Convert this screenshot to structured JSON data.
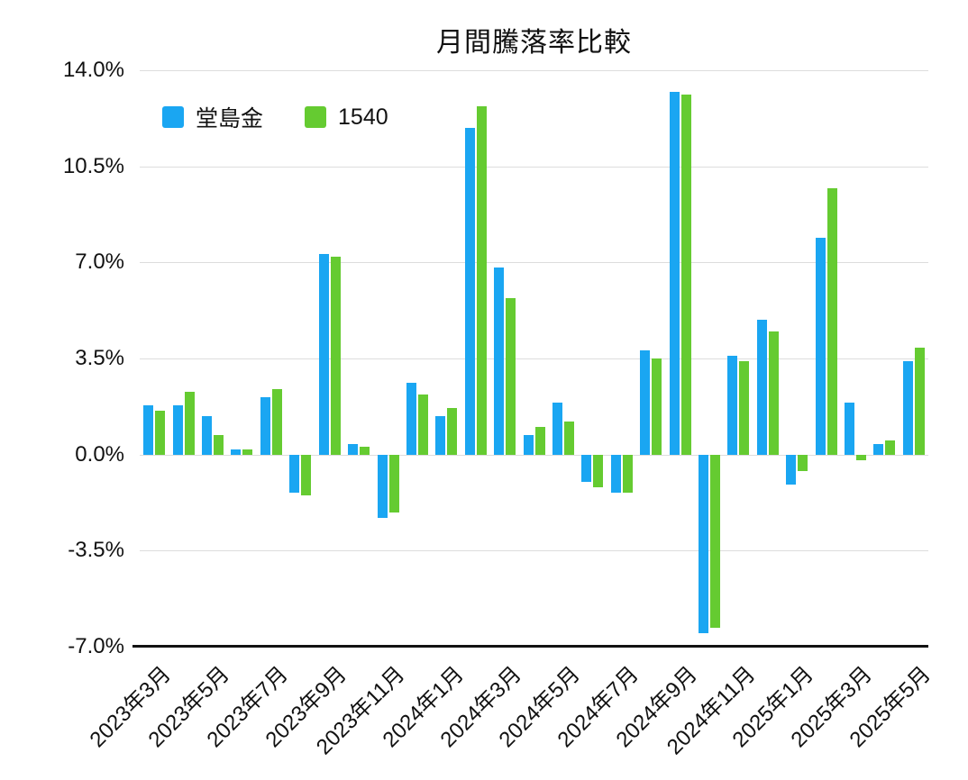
{
  "chart_data": {
    "type": "bar",
    "title": "月間騰落率比較",
    "categories": [
      "2023年3月",
      "2023年4月",
      "2023年5月",
      "2023年6月",
      "2023年7月",
      "2023年8月",
      "2023年9月",
      "2023年10月",
      "2023年11月",
      "2023年12月",
      "2024年1月",
      "2024年2月",
      "2024年3月",
      "2024年4月",
      "2024年5月",
      "2024年6月",
      "2024年7月",
      "2024年8月",
      "2024年9月",
      "2024年10月",
      "2024年11月",
      "2024年12月",
      "2025年1月",
      "2025年2月",
      "2025年3月",
      "2025年4月",
      "2025年5月"
    ],
    "series": [
      {
        "name": "堂島金",
        "color": "#1AA6F2",
        "values": [
          1.8,
          1.8,
          1.4,
          0.2,
          2.1,
          -1.4,
          7.3,
          0.4,
          -2.3,
          2.6,
          1.4,
          11.9,
          6.8,
          0.7,
          1.9,
          -1.0,
          -1.4,
          3.8,
          13.2,
          -6.5,
          3.6,
          4.9,
          -1.1,
          7.9,
          1.9,
          0.4,
          3.4
        ]
      },
      {
        "name": "1540",
        "color": "#65CB31",
        "values": [
          1.6,
          2.3,
          0.7,
          0.2,
          2.4,
          -1.5,
          7.2,
          0.3,
          -2.1,
          2.2,
          1.7,
          12.7,
          5.7,
          1.0,
          1.2,
          -1.2,
          -1.4,
          3.5,
          13.1,
          -6.3,
          3.4,
          4.5,
          -0.6,
          9.7,
          -0.2,
          0.5,
          3.9
        ]
      }
    ],
    "unit": "%",
    "ylim": [
      -7.0,
      14.0
    ],
    "yticks": [
      14.0,
      10.5,
      7.0,
      3.5,
      0.0,
      -3.5,
      -7.0
    ],
    "ytick_labels": [
      "14.0%",
      "10.5%",
      "7.0%",
      "3.5%",
      "0.0%",
      "-3.5%",
      "-7.0%"
    ],
    "xtick_labels_shown": [
      "2023年3月",
      "2023年5月",
      "2023年7月",
      "2023年9月",
      "2023年11月",
      "2024年1月",
      "2024年3月",
      "2024年5月",
      "2024年7月",
      "2024年9月",
      "2024年11月",
      "2025年1月",
      "2025年3月",
      "2025年5月"
    ],
    "xtick_step": 2,
    "grid": true,
    "grid_color": "#dddddd",
    "axis_color": "#111111",
    "legend_position": "top-left"
  }
}
